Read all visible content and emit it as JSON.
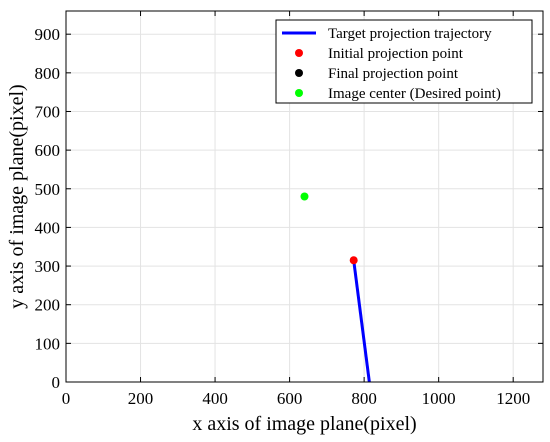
{
  "chart_data": {
    "type": "line",
    "xlabel": "x axis of image plane(pixel)",
    "ylabel": "y axis of image plane(pixel)",
    "xlim": [
      0,
      1280
    ],
    "ylim": [
      0,
      960
    ],
    "xticks": [
      0,
      200,
      400,
      600,
      800,
      1000,
      1200
    ],
    "yticks": [
      0,
      100,
      200,
      300,
      400,
      500,
      600,
      700,
      800,
      900
    ],
    "grid": true,
    "legend_position": "top-right",
    "series": [
      {
        "name": "Target projection trajectory",
        "kind": "line",
        "color": "#0000ff",
        "x": [
          772,
          814
        ],
        "y": [
          315,
          0
        ]
      },
      {
        "name": "Initial projection point",
        "kind": "point",
        "color": "#ff0000",
        "x": [
          772
        ],
        "y": [
          315
        ]
      },
      {
        "name": "Final projection point",
        "kind": "point",
        "color": "#000000",
        "x": [],
        "y": []
      },
      {
        "name": "Image center (Desired point)",
        "kind": "point",
        "color": "#00ff00",
        "x": [
          640
        ],
        "y": [
          480
        ]
      }
    ]
  }
}
